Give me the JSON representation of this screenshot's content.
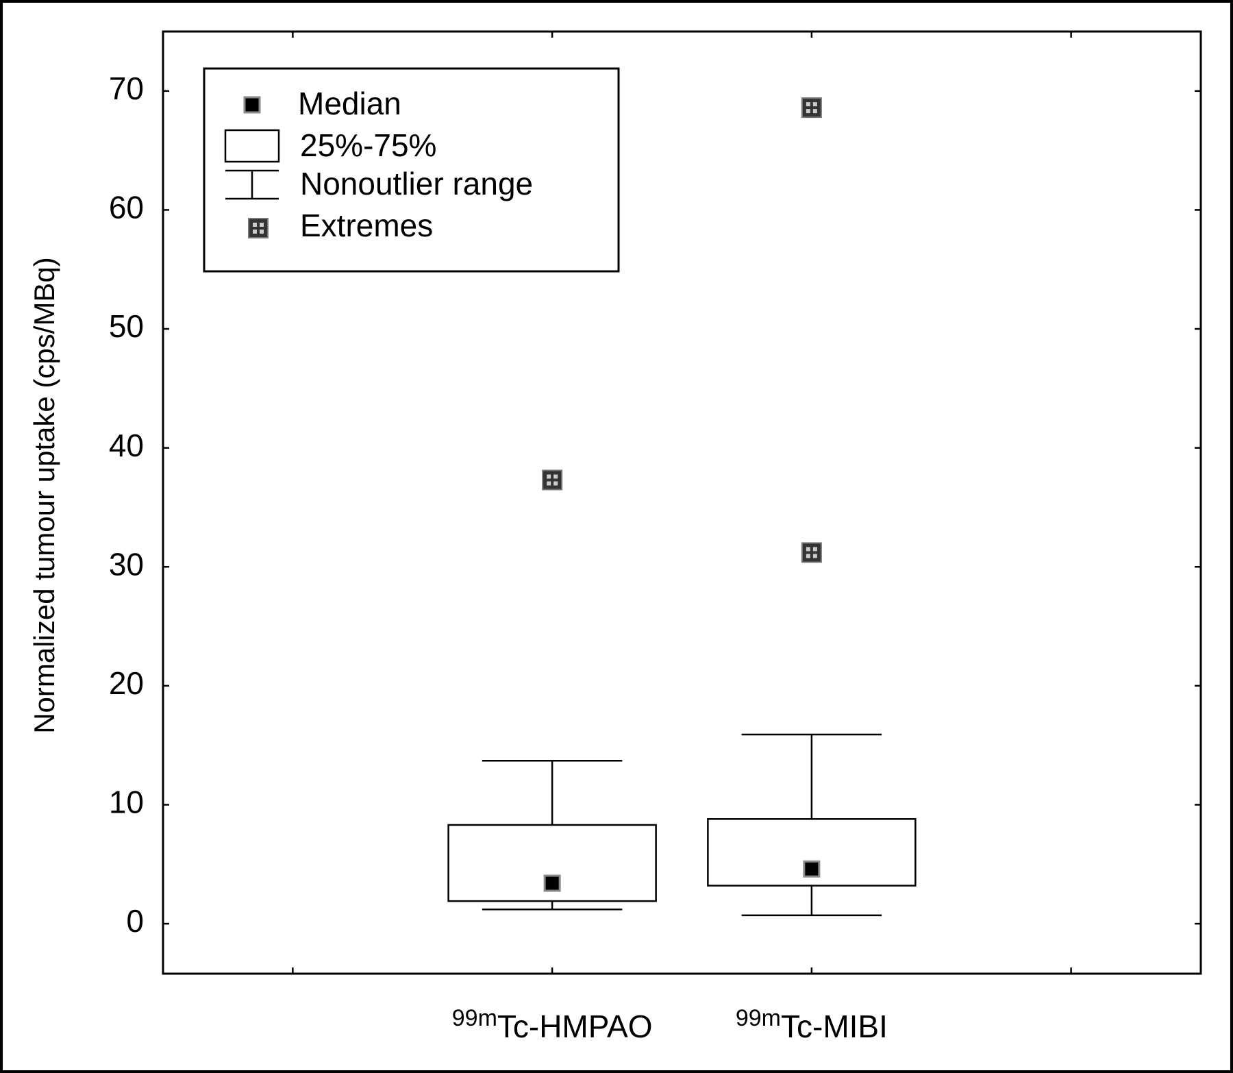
{
  "chart_data": {
    "type": "box",
    "y_label": "Normalized tumour uptake (cps/MBq)",
    "categories": [
      null,
      "99mTc-HMPAO",
      "99mTc-MIBI",
      null
    ],
    "median": [
      null,
      3.4,
      4.6,
      null
    ],
    "q1": [
      null,
      1.9,
      3.2,
      null
    ],
    "q3": [
      null,
      8.3,
      8.8,
      null
    ],
    "whisker_low": [
      null,
      1.2,
      0.7,
      null
    ],
    "whisker_high": [
      null,
      13.7,
      15.9,
      null
    ],
    "extremes": [
      [],
      [
        37.3
      ],
      [
        68.6,
        31.2
      ],
      []
    ],
    "ylim": [
      -4.2,
      75
    ],
    "yticks": [
      0,
      10,
      20,
      30,
      40,
      50,
      60,
      70
    ],
    "legend": {
      "position": "upper left",
      "median": "Median",
      "box": "25%-75%",
      "whisker": "Nonoutlier range",
      "extremes": "Extremes"
    }
  }
}
